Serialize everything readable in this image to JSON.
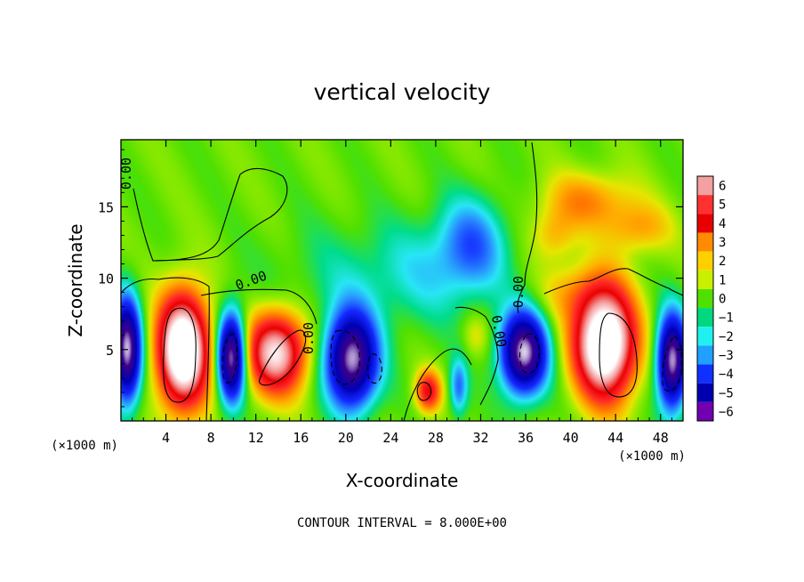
{
  "chart_data": {
    "type": "heatmap",
    "title": "vertical velocity",
    "xlabel": "X-coordinate",
    "ylabel": "Z-coordinate",
    "x_unit": "(×1000 m)",
    "x_ticks": [
      "4",
      "8",
      "12",
      "16",
      "20",
      "24",
      "28",
      "32",
      "36",
      "40",
      "44",
      "48"
    ],
    "y_ticks": [
      "5",
      "10",
      "15"
    ],
    "xlim": [
      0,
      50
    ],
    "ylim": [
      0,
      19.7
    ],
    "footer": "CONTOUR INTERVAL = 8.000E+00",
    "contour_label": "0.00",
    "colorbar": {
      "labels": [
        "6",
        "5",
        "4",
        "3",
        "2",
        "1",
        "0",
        "-1",
        "-2",
        "-3",
        "-4",
        "-5",
        "-6"
      ],
      "colors": [
        "#f2a0a0",
        "#ff3030",
        "#e80000",
        "#ff8c00",
        "#ffd000",
        "#c8f000",
        "#50e000",
        "#00d880",
        "#20f0f0",
        "#20a0ff",
        "#1030ff",
        "#0000b0",
        "#7000b0"
      ]
    },
    "features": [
      {
        "kind": "updraft",
        "x": 5.5,
        "z": 5.0,
        "w": 2.2,
        "h": 3.8,
        "peak": 14
      },
      {
        "kind": "updraft",
        "x": 13.8,
        "z": 4.8,
        "w": 2.6,
        "h": 2.8,
        "peak": 10
      },
      {
        "kind": "updraft",
        "x": 27.3,
        "z": 2.1,
        "w": 1.1,
        "h": 1.4,
        "peak": 6
      },
      {
        "kind": "updraft",
        "x": 43.0,
        "z": 5.5,
        "w": 2.6,
        "h": 3.8,
        "peak": 14
      },
      {
        "kind": "updraft",
        "x": 41.5,
        "z": 15.5,
        "w": 4.0,
        "h": 2.0,
        "peak": 3
      },
      {
        "kind": "updraft",
        "x": 46.0,
        "z": 13.5,
        "w": 3.0,
        "h": 1.8,
        "peak": 2.5
      },
      {
        "kind": "updraft",
        "x": 38.5,
        "z": 13.0,
        "w": 2.0,
        "h": 1.8,
        "peak": 2.2
      },
      {
        "kind": "updraft",
        "x": 40.0,
        "z": 9.0,
        "w": 3.0,
        "h": 2.0,
        "peak": 2
      },
      {
        "kind": "updraft",
        "x": 31.5,
        "z": 6.0,
        "w": 1.2,
        "h": 1.5,
        "peak": 1.5
      },
      {
        "kind": "downdraft",
        "x": 0.5,
        "z": 5.0,
        "w": 1.2,
        "h": 3.5,
        "peak": -12
      },
      {
        "kind": "downdraft",
        "x": 9.8,
        "z": 4.5,
        "w": 1.2,
        "h": 3.0,
        "peak": -12
      },
      {
        "kind": "downdraft",
        "x": 20.5,
        "z": 4.3,
        "w": 2.2,
        "h": 3.2,
        "peak": -12
      },
      {
        "kind": "downdraft",
        "x": 35.8,
        "z": 4.8,
        "w": 2.0,
        "h": 2.8,
        "peak": -12
      },
      {
        "kind": "downdraft",
        "x": 49.0,
        "z": 4.2,
        "w": 1.3,
        "h": 3.2,
        "peak": -12
      },
      {
        "kind": "downdraft",
        "x": 30.0,
        "z": 2.4,
        "w": 0.8,
        "h": 2.0,
        "peak": -4
      },
      {
        "kind": "downdraft",
        "x": 31.2,
        "z": 12.6,
        "w": 3.0,
        "h": 3.2,
        "peak": -3.5
      },
      {
        "kind": "downdraft",
        "x": 28.0,
        "z": 10.5,
        "w": 5.5,
        "h": 3.5,
        "peak": -1.8
      },
      {
        "kind": "downdraft",
        "x": 20.0,
        "z": 10.0,
        "w": 7.0,
        "h": 4.0,
        "peak": -1.2
      }
    ]
  }
}
